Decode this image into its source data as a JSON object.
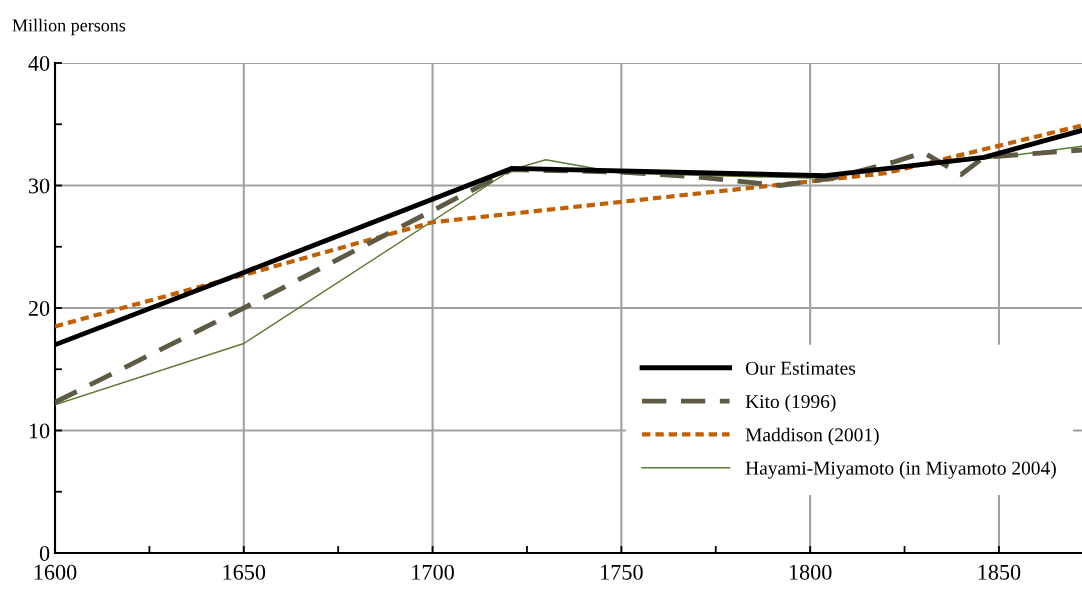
{
  "chart_data": {
    "type": "line",
    "ylabel": "Million persons",
    "xlim": [
      1600,
      1872
    ],
    "ylim": [
      0,
      40
    ],
    "xticks": [
      1600,
      {
        "value": 1625,
        "label": null
      },
      1650,
      {
        "value": 1675,
        "label": null
      },
      1700,
      {
        "value": 1725,
        "label": null
      },
      1750,
      {
        "value": 1775,
        "label": null
      },
      1800,
      {
        "value": 1825,
        "label": null
      },
      1850
    ],
    "yticks": [
      0,
      {
        "value": 5,
        "label": null
      },
      10,
      {
        "value": 15,
        "label": null
      },
      20,
      {
        "value": 25,
        "label": null
      },
      30,
      {
        "value": 35,
        "label": null
      },
      40
    ],
    "grid": true,
    "legend": "bottom right",
    "marker": "none",
    "series": [
      {
        "name": "Our Estimates",
        "color": "#000000",
        "line_style": "solid",
        "x": [
          1600,
          1650,
          1721,
          1804,
          1846,
          1872
        ],
        "values": [
          17.0,
          22.9,
          31.4,
          30.8,
          32.3,
          34.5
        ]
      },
      {
        "name": "Kito (1996)",
        "color": "#5e5a45",
        "line_style": "dashed",
        "x": [
          1600,
          1650,
          1721,
          1750,
          1770,
          1792,
          1806,
          1822,
          1830,
          1840,
          1846,
          1872
        ],
        "values": [
          12.3,
          20.0,
          31.3,
          31.1,
          30.7,
          30.0,
          30.6,
          31.9,
          32.7,
          30.9,
          32.3,
          32.9
        ]
      },
      {
        "name": "Maddison (2001)",
        "color": "#c06000",
        "line_style": "dotted",
        "x": [
          1600,
          1650,
          1700,
          1820,
          1872
        ],
        "values": [
          18.5,
          22.7,
          27.0,
          31.0,
          34.9
        ]
      },
      {
        "name": "Hayami-Miyamoto (in Miyamoto 2004)",
        "color": "#5a7a30",
        "line_style": "solid",
        "x": [
          1600,
          1650,
          1721,
          1730,
          1750,
          1800,
          1850,
          1872
        ],
        "values": [
          12.1,
          17.1,
          31.3,
          32.1,
          31.0,
          30.6,
          32.3,
          33.2
        ]
      }
    ]
  }
}
